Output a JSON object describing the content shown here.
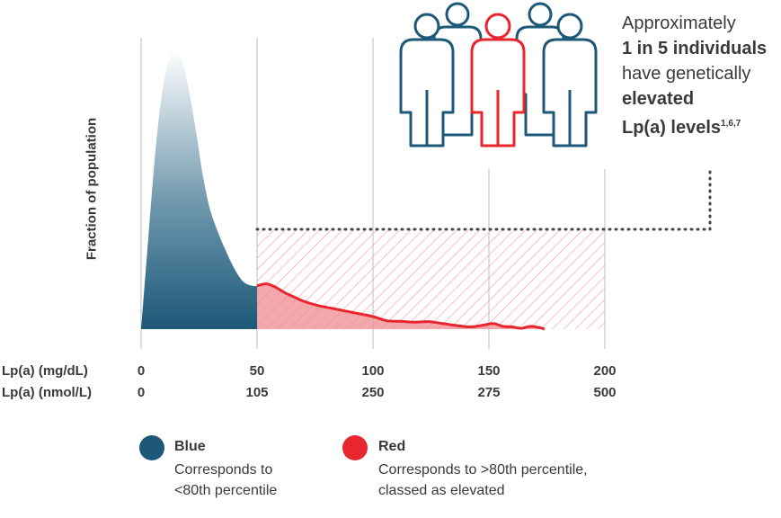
{
  "chart_data": {
    "type": "area",
    "ylabel": "Fraction of population",
    "x_axes": [
      {
        "label": "Lp(a) (mg/dL)",
        "ticks": [
          "0",
          "50",
          "100",
          "150",
          "200"
        ]
      },
      {
        "label": "Lp(a) (nmol/L)",
        "ticks": [
          "0",
          "105",
          "250",
          "275",
          "500"
        ]
      }
    ],
    "xlim": [
      0,
      200
    ],
    "ylim": [
      0,
      1
    ],
    "grid": true,
    "series": [
      {
        "name": "Blue",
        "color": "#1d5878",
        "x": [
          0,
          2,
          4,
          6,
          8,
          10,
          12,
          14,
          16,
          18,
          20,
          22,
          24,
          26,
          28,
          30,
          33,
          36,
          40,
          44,
          48,
          50
        ],
        "y": [
          0,
          0.21,
          0.42,
          0.62,
          0.78,
          0.89,
          0.96,
          1.0,
          0.99,
          0.95,
          0.88,
          0.79,
          0.69,
          0.58,
          0.49,
          0.42,
          0.35,
          0.29,
          0.22,
          0.17,
          0.155,
          0.155
        ]
      },
      {
        "name": "Red",
        "color": "#e8262f",
        "x": [
          50,
          54,
          58,
          62,
          66,
          70,
          76,
          82,
          88,
          94,
          100,
          106,
          112,
          118,
          124,
          130,
          136,
          142,
          148,
          152,
          156,
          160,
          164,
          168,
          172,
          174
        ],
        "y": [
          0.155,
          0.162,
          0.15,
          0.13,
          0.115,
          0.1,
          0.085,
          0.075,
          0.065,
          0.055,
          0.045,
          0.03,
          0.028,
          0.025,
          0.027,
          0.02,
          0.013,
          0.008,
          0.015,
          0.02,
          0.01,
          0.008,
          0.003,
          0.01,
          0.005,
          0.0
        ]
      }
    ],
    "hatched_region": {
      "x": [
        50,
        200
      ]
    }
  },
  "callout": {
    "line1": "Approximately",
    "line2": "1 in 5 individuals",
    "line3": "have genetically",
    "line4": "elevated",
    "line5": "Lp(a) levels",
    "refs": "1,6,7"
  },
  "people_icon": {
    "name": "people-group-icon",
    "highlight": "#e8262f",
    "base": "#1d5878"
  },
  "legend": [
    {
      "title": "Blue",
      "desc1": "Corresponds to",
      "desc2": "<80th percentile",
      "color": "#1d5878"
    },
    {
      "title": "Red",
      "desc1": "Corresponds to >80th percentile,",
      "desc2": "classed as elevated",
      "color": "#e8262f"
    }
  ]
}
